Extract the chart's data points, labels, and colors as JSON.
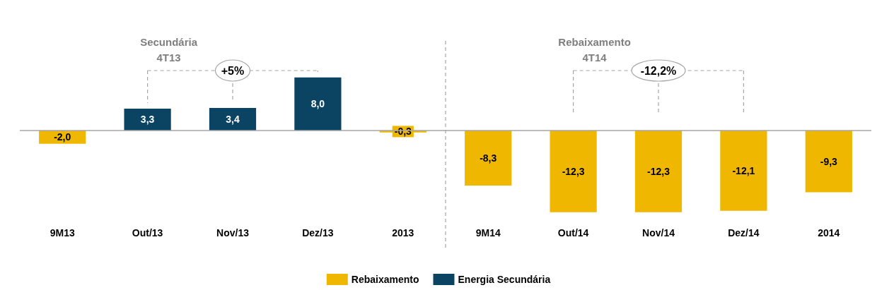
{
  "chart_data": {
    "type": "bar",
    "categories": [
      "9M13",
      "Out/13",
      "Nov/13",
      "Dez/13",
      "2013",
      "9M14",
      "Out/14",
      "Nov/14",
      "Dez/14",
      "2014"
    ],
    "stacked": true,
    "series": [
      {
        "name": "Rebaixamento",
        "color": "#efb700",
        "values": [
          -2.0,
          null,
          null,
          null,
          -0.3,
          -8.3,
          -12.3,
          -12.3,
          -12.1,
          -9.3
        ],
        "value_labels": [
          "-2,0",
          null,
          null,
          null,
          "-0,3",
          "-8,3",
          "-12,3",
          "-12,3",
          "-12,1",
          "-9,3"
        ]
      },
      {
        "name": "Energia Secundária",
        "color": "#0b4463",
        "values": [
          null,
          3.3,
          3.4,
          8.0,
          null,
          null,
          null,
          null,
          null,
          null
        ],
        "value_labels": [
          null,
          "3,3",
          "3,4",
          "8,0",
          null,
          null,
          null,
          null,
          null,
          null
        ]
      }
    ],
    "annotations": [
      "Secundária",
      "4T13",
      "+5%",
      "Rebaixamento",
      "4T14",
      "-12,2%"
    ],
    "ref_lines": [
      {
        "axis": "y",
        "value": 0,
        "color": "#a6a6a6"
      }
    ],
    "grid": false,
    "legend": "bottom",
    "tick_labels": "x"
  }
}
